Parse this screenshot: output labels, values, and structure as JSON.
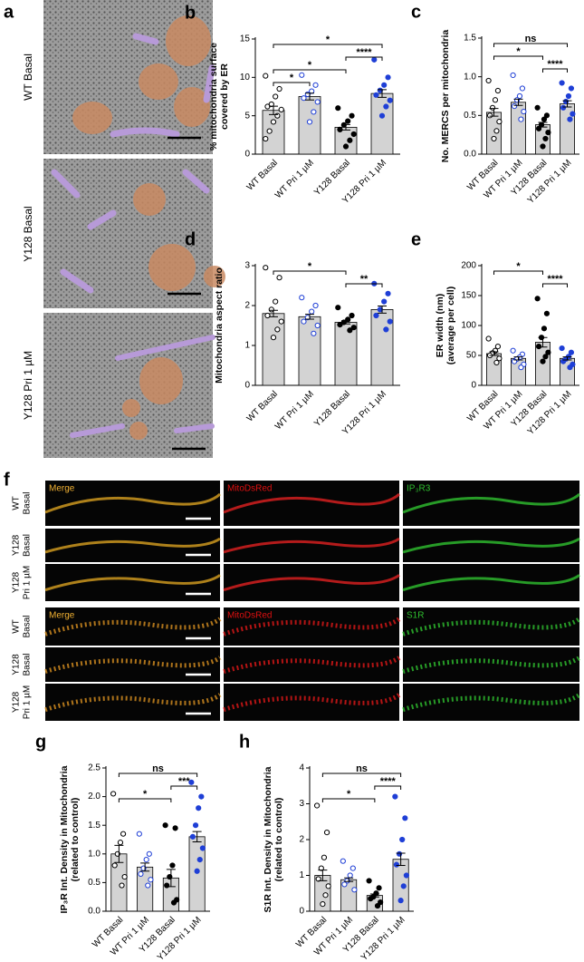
{
  "panel_a": {
    "letter": "a",
    "rows": [
      "WT  Basal",
      "Y128  Basal",
      "Y128  Pri 1 µM"
    ]
  },
  "panel_f": {
    "letter": "f",
    "groups": [
      {
        "columns": [
          "Merge",
          "MitoDsRed",
          "IP₃R3"
        ],
        "rows": [
          [
            "WT",
            "Basal"
          ],
          [
            "Y128",
            "Basal"
          ],
          [
            "Y128",
            "Pri 1 µM"
          ]
        ]
      },
      {
        "columns": [
          "Merge",
          "MitoDsRed",
          "S1R"
        ],
        "rows": [
          [
            "WT",
            "Basal"
          ],
          [
            "Y128",
            "Basal"
          ],
          [
            "Y128",
            "Pri 1 µM"
          ]
        ]
      }
    ]
  },
  "chart_data": [
    {
      "type": "bar",
      "letter": "b",
      "ylabel": [
        "% mitochondria surface",
        "covered by ER"
      ],
      "categories": [
        "WT Basal",
        "WT Pri 1 µM",
        "Y128 Basal",
        "Y128 Pri 1 µM"
      ],
      "values": [
        5.7,
        7.5,
        3.5,
        7.9
      ],
      "errors": [
        0.55,
        0.45,
        0.35,
        0.5
      ],
      "points": [
        [
          10.2,
          8.5,
          7.5,
          6.5,
          6.2,
          5.8,
          5.0,
          4.2,
          3.0,
          2.0
        ],
        [
          10.3,
          9.0,
          8.2,
          7.8,
          7.3,
          6.8,
          5.5,
          4.2
        ],
        [
          6.0,
          5.0,
          4.3,
          3.8,
          3.2,
          2.6,
          1.8,
          1.0
        ],
        [
          12.3,
          10.0,
          9.0,
          8.3,
          7.7,
          7.0,
          6.2,
          5.0
        ]
      ],
      "point_colors": [
        "#000000",
        "#1f3fd6",
        "#000000",
        "#1f3fd6"
      ],
      "point_filled": [
        false,
        false,
        true,
        true
      ],
      "color": "#d3d3d3",
      "ylim": [
        0,
        15
      ],
      "yticks": [
        0,
        5,
        10,
        15
      ],
      "brackets": [
        {
          "from": 0,
          "to": 3,
          "label": "*"
        },
        {
          "from": 2,
          "to": 3,
          "label": "****"
        },
        {
          "from": 0,
          "to": 2,
          "label": "*"
        },
        {
          "from": 0,
          "to": 1,
          "label": "*"
        }
      ]
    },
    {
      "type": "bar",
      "letter": "c",
      "ylabel": [
        "No. MERCS per mitochondria"
      ],
      "categories": [
        "WT Basal",
        "WT Pri 1 µM",
        "Y128 Basal",
        "Y128 Pri 1 µM"
      ],
      "values": [
        0.54,
        0.67,
        0.38,
        0.65
      ],
      "errors": [
        0.05,
        0.04,
        0.03,
        0.04
      ],
      "points": [
        [
          0.95,
          0.82,
          0.7,
          0.6,
          0.5,
          0.42,
          0.3,
          0.2
        ],
        [
          1.02,
          0.85,
          0.75,
          0.7,
          0.62,
          0.55,
          0.45
        ],
        [
          0.6,
          0.5,
          0.45,
          0.38,
          0.33,
          0.28,
          0.2,
          0.1
        ],
        [
          0.92,
          0.85,
          0.75,
          0.68,
          0.6,
          0.52,
          0.45
        ]
      ],
      "point_colors": [
        "#000000",
        "#1f3fd6",
        "#000000",
        "#1f3fd6"
      ],
      "point_filled": [
        false,
        false,
        true,
        true
      ],
      "color": "#d3d3d3",
      "ylim": [
        0,
        1.5
      ],
      "yticks": [
        {
          "value": 0,
          "label": "0.0"
        },
        0.5,
        {
          "value": 1,
          "label": "1.0"
        },
        1.5
      ],
      "brackets": [
        {
          "from": 0,
          "to": 3,
          "label": "ns"
        },
        {
          "from": 0,
          "to": 2,
          "label": "*"
        },
        {
          "from": 2,
          "to": 3,
          "label": "****"
        }
      ]
    },
    {
      "type": "bar",
      "letter": "d",
      "ylabel": [
        "Mitochondria aspect ratio"
      ],
      "categories": [
        "WT Basal",
        "WT Pri 1 µM",
        "Y128 Basal",
        "Y128 Pri 1 µM"
      ],
      "values": [
        1.8,
        1.72,
        1.58,
        1.9
      ],
      "errors": [
        0.08,
        0.06,
        0.04,
        0.09
      ],
      "points": [
        [
          2.95,
          2.7,
          2.1,
          1.9,
          1.75,
          1.6,
          1.4,
          1.2
        ],
        [
          2.2,
          2.0,
          1.85,
          1.7,
          1.6,
          1.5,
          1.3
        ],
        [
          1.95,
          1.75,
          1.65,
          1.58,
          1.52,
          1.45,
          1.38
        ],
        [
          2.55,
          2.3,
          2.1,
          1.9,
          1.75,
          1.6,
          1.4
        ]
      ],
      "point_colors": [
        "#000000",
        "#1f3fd6",
        "#000000",
        "#1f3fd6"
      ],
      "point_filled": [
        false,
        false,
        true,
        true
      ],
      "color": "#d3d3d3",
      "ylim": [
        0,
        3
      ],
      "yticks": [
        0,
        1,
        2,
        3
      ],
      "brackets": [
        {
          "from": 0,
          "to": 2,
          "label": "*"
        },
        {
          "from": 2,
          "to": 3,
          "label": "**"
        }
      ]
    },
    {
      "type": "bar",
      "letter": "e",
      "ylabel": [
        "ER width (nm)",
        "(average per cell)"
      ],
      "categories": [
        "WT Basal",
        "WT Pri 1 µM",
        "Y128 Basal",
        "Y128 Pri 1 µM"
      ],
      "values": [
        53,
        45,
        72,
        45
      ],
      "errors": [
        3,
        2.5,
        8,
        2.5
      ],
      "points": [
        [
          78,
          65,
          58,
          54,
          50,
          45,
          38
        ],
        [
          58,
          52,
          47,
          44,
          40,
          35,
          30
        ],
        [
          145,
          120,
          95,
          80,
          65,
          55,
          48,
          40
        ],
        [
          62,
          55,
          48,
          44,
          40,
          35,
          30
        ]
      ],
      "point_colors": [
        "#000000",
        "#1f3fd6",
        "#000000",
        "#1f3fd6"
      ],
      "point_filled": [
        false,
        false,
        true,
        true
      ],
      "color": "#d3d3d3",
      "ylim": [
        0,
        200
      ],
      "yticks": [
        0,
        50,
        100,
        150,
        200
      ],
      "brackets": [
        {
          "from": 0,
          "to": 2,
          "label": "*"
        },
        {
          "from": 2,
          "to": 3,
          "label": "****"
        }
      ]
    },
    {
      "type": "bar",
      "letter": "g",
      "ylabel": [
        "IP₃R Int. Density in Mitochondria",
        "(related to control)"
      ],
      "categories": [
        "WT Basal",
        "WT Pri 1 µM",
        "Y128 Basal",
        "Y128 Pri 1 µM"
      ],
      "values": [
        1.0,
        0.77,
        0.58,
        1.3
      ],
      "errors": [
        0.15,
        0.07,
        0.15,
        0.09
      ],
      "points": [
        [
          2.05,
          1.35,
          1.2,
          1.0,
          0.8,
          0.6,
          0.45
        ],
        [
          1.35,
          1.0,
          0.9,
          0.75,
          0.65,
          0.55,
          0.45
        ],
        [
          1.5,
          1.45,
          0.8,
          0.6,
          0.45,
          0.2,
          0.15
        ],
        [
          2.25,
          2.0,
          1.8,
          1.5,
          1.3,
          1.1,
          0.9,
          0.7
        ]
      ],
      "point_colors": [
        "#000000",
        "#1f3fd6",
        "#000000",
        "#1f3fd6"
      ],
      "point_filled": [
        false,
        false,
        true,
        true
      ],
      "color": "#d3d3d3",
      "ylim": [
        0,
        2.5
      ],
      "yticks": [
        {
          "value": 0,
          "label": "0.0"
        },
        0.5,
        {
          "value": 1,
          "label": "1.0"
        },
        1.5,
        {
          "value": 2,
          "label": "2.0"
        },
        2.5
      ],
      "brackets": [
        {
          "from": 0,
          "to": 3,
          "label": "ns"
        },
        {
          "from": 2,
          "to": 3,
          "label": "***"
        },
        {
          "from": 0,
          "to": 2,
          "label": "*"
        }
      ]
    },
    {
      "type": "bar",
      "letter": "h",
      "ylabel": [
        "S1R Int. Density in Mitochondria",
        "(related to control)"
      ],
      "categories": [
        "WT Basal",
        "WT Pri 1 µM",
        "Y128 Basal",
        "Y128 Pri 1 µM"
      ],
      "values": [
        1.0,
        0.88,
        0.44,
        1.45
      ],
      "errors": [
        0.15,
        0.05,
        0.04,
        0.17
      ],
      "points": [
        [
          2.95,
          2.2,
          1.5,
          1.2,
          0.9,
          0.7,
          0.45,
          0.2
        ],
        [
          1.4,
          1.2,
          1.0,
          0.85,
          0.75,
          0.6
        ],
        [
          0.85,
          0.65,
          0.5,
          0.4,
          0.35,
          0.25,
          0.15
        ],
        [
          3.2,
          2.6,
          2.0,
          1.6,
          1.3,
          1.0,
          0.7,
          0.3
        ]
      ],
      "point_colors": [
        "#000000",
        "#1f3fd6",
        "#000000",
        "#1f3fd6"
      ],
      "point_filled": [
        false,
        false,
        true,
        true
      ],
      "color": "#d3d3d3",
      "ylim": [
        0,
        4
      ],
      "yticks": [
        0,
        1,
        2,
        3,
        4
      ],
      "brackets": [
        {
          "from": 0,
          "to": 3,
          "label": "ns"
        },
        {
          "from": 2,
          "to": 3,
          "label": "****"
        },
        {
          "from": 0,
          "to": 2,
          "label": "*"
        }
      ]
    }
  ]
}
